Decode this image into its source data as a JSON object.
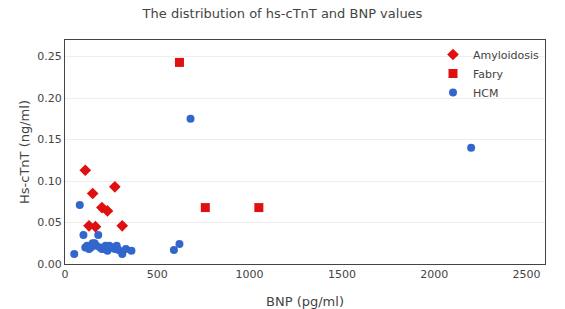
{
  "chart_data": {
    "type": "scatter",
    "title": "The distribution of hs-cTnT and BNP values",
    "xlabel": "BNP (pg/ml)",
    "ylabel": "Hs-cTnT (ng/ml)",
    "xlim": [
      0,
      2600
    ],
    "ylim": [
      0,
      0.27
    ],
    "xticks": [
      0,
      500,
      1000,
      1500,
      2000,
      2500
    ],
    "yticks": [
      {
        "value": 0.0,
        "label": "0.00"
      },
      0.05,
      {
        "value": 0.1,
        "label": "0.10"
      },
      0.15,
      {
        "value": 0.2,
        "label": "0.20"
      },
      0.25
    ],
    "grid": "y",
    "legend": "upper right",
    "series": [
      {
        "name": "Amyloidosis",
        "color": "#e01010",
        "marker": "diamond",
        "x": [
          110,
          150,
          200,
          230,
          270,
          310,
          130,
          165
        ],
        "values": [
          0.113,
          0.085,
          0.068,
          0.064,
          0.093,
          0.046,
          0.046,
          0.045
        ]
      },
      {
        "name": "Fabry",
        "color": "#e01010",
        "marker": "square",
        "x": [
          620,
          760,
          1050
        ],
        "values": [
          0.243,
          0.068,
          0.068
        ]
      },
      {
        "name": "HCM",
        "color": "#3366cc",
        "marker": "circle",
        "x": [
          50,
          80,
          100,
          110,
          120,
          130,
          140,
          150,
          160,
          170,
          180,
          190,
          200,
          210,
          220,
          230,
          240,
          250,
          260,
          270,
          280,
          290,
          310,
          330,
          360,
          590,
          620,
          680,
          2200
        ],
        "values": [
          0.012,
          0.071,
          0.035,
          0.02,
          0.022,
          0.018,
          0.02,
          0.025,
          0.025,
          0.022,
          0.035,
          0.02,
          0.018,
          0.018,
          0.022,
          0.016,
          0.022,
          0.02,
          0.02,
          0.018,
          0.022,
          0.017,
          0.012,
          0.018,
          0.016,
          0.017,
          0.024,
          0.175,
          0.14
        ]
      }
    ]
  }
}
